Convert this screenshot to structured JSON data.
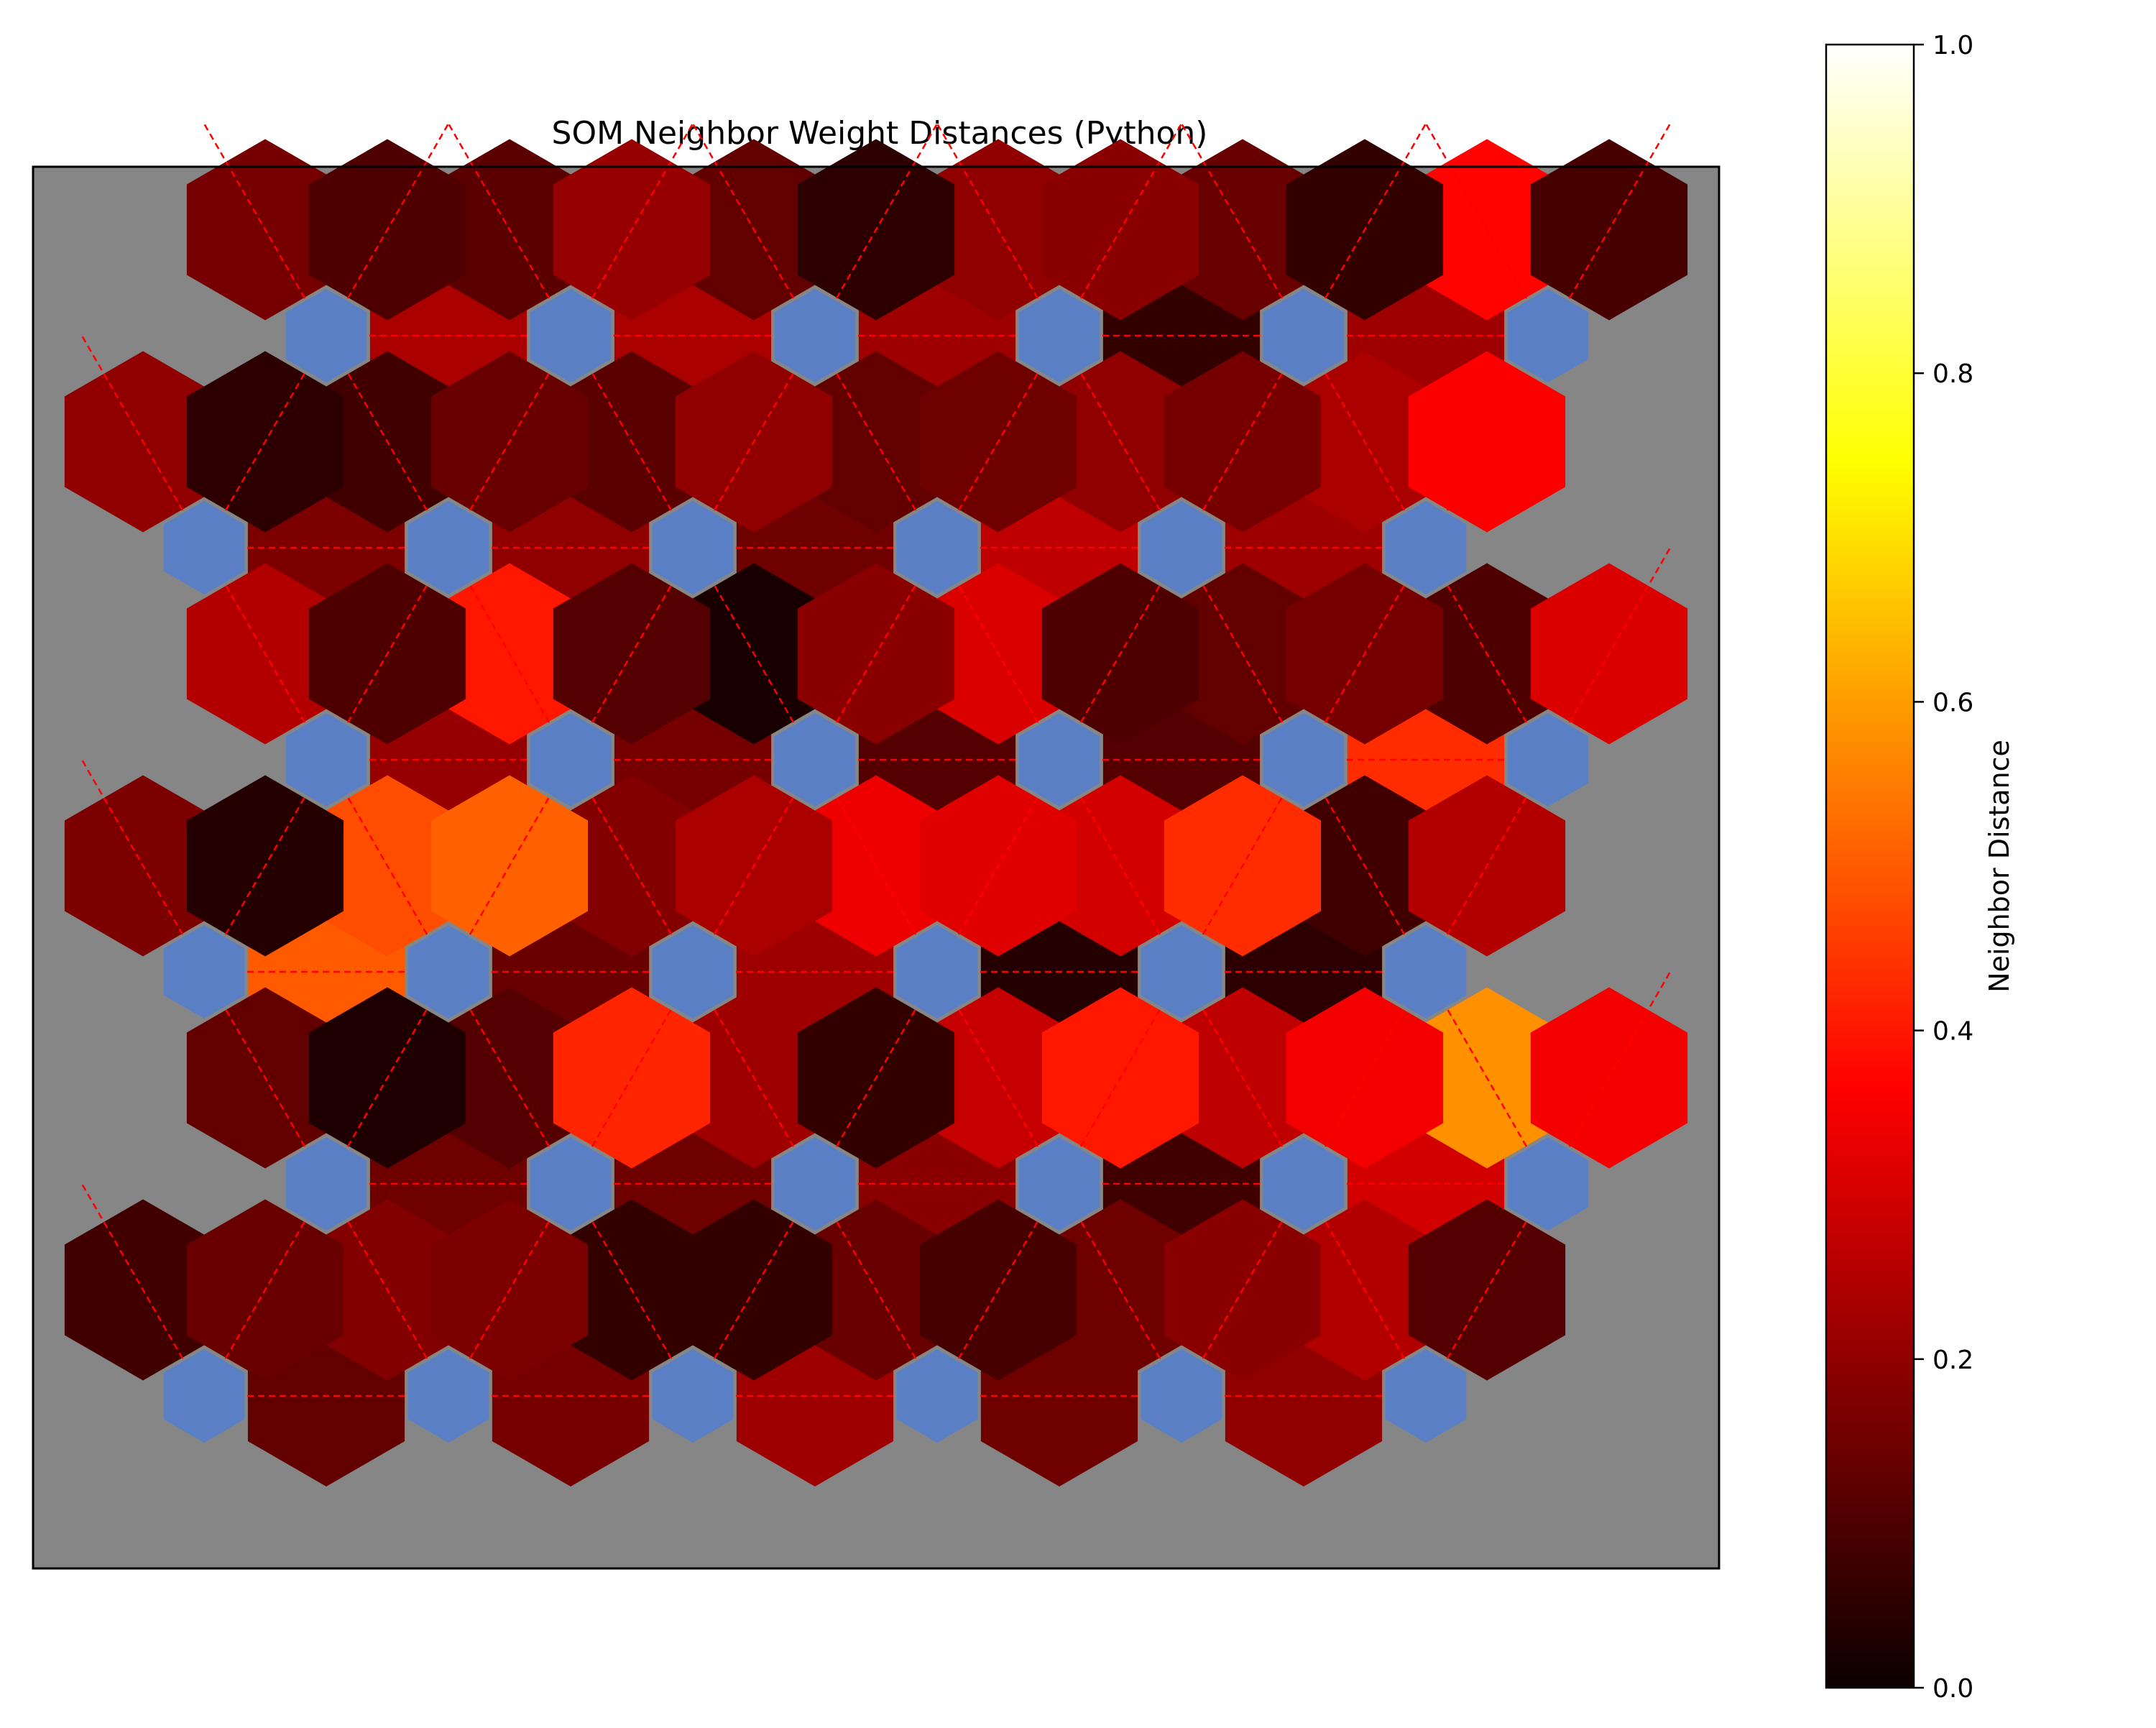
{
  "chart_data": {
    "type": "heatmap",
    "title": "SOM Neighbor Weight Distances (Python)",
    "colorbar": {
      "label": "Neighbor Distance",
      "range": [
        0.0,
        1.0
      ],
      "colormap": "hot",
      "ticks": [
        "0.0",
        "0.2",
        "0.4",
        "0.6",
        "0.8",
        "1.0"
      ]
    },
    "grid": {
      "rows": 6,
      "cols": 6,
      "topology": "hexagonal",
      "neuron_color": "#5b7fc4",
      "background_color": "#868686",
      "connection_color": "#ff0000"
    },
    "edges": {
      "horizontal": [
        [
          0.13,
          0.16,
          0.22,
          0.15,
          0.2
        ],
        [
          0.15,
          0.15,
          0.19,
          0.08,
          0.3
        ],
        [
          0.5,
          0.14,
          0.22,
          0.04,
          0.05
        ],
        [
          0.21,
          0.16,
          0.11,
          0.11,
          0.43
        ],
        [
          0.17,
          0.2,
          0.15,
          0.27,
          0.22
        ],
        [
          0.24,
          0.24,
          0.22,
          0.06,
          0.22
        ]
      ],
      "upper_left": [
        [
          0.08,
          0.18,
          0.06,
          0.14,
          0.15,
          0.25
        ],
        [
          0.13,
          0.11,
          0.22,
          0.28,
          0.27,
          0.58
        ],
        [
          0.17,
          0.48,
          0.18,
          0.34,
          0.3,
          0.08
        ],
        [
          0.25,
          0.4,
          0.02,
          0.31,
          0.13,
          0.1
        ],
        [
          0.2,
          0.08,
          0.12,
          0.13,
          0.2,
          0.24
        ],
        [
          0.16,
          0.12,
          0.13,
          0.2,
          0.14,
          0.37
        ]
      ],
      "upper_right": [
        [
          0.14,
          0.17,
          0.06,
          0.09,
          0.19,
          0.11
        ],
        [
          0.03,
          0.42,
          0.06,
          0.4,
          0.35,
          0.35
        ],
        [
          0.04,
          0.51,
          0.24,
          0.32,
          0.43,
          0.25
        ],
        [
          0.1,
          0.11,
          0.19,
          0.1,
          0.16,
          0.31
        ],
        [
          0.05,
          0.14,
          0.2,
          0.15,
          0.16,
          0.36
        ],
        [
          0.1,
          0.21,
          0.05,
          0.19,
          0.06,
          0.09
        ]
      ]
    }
  }
}
